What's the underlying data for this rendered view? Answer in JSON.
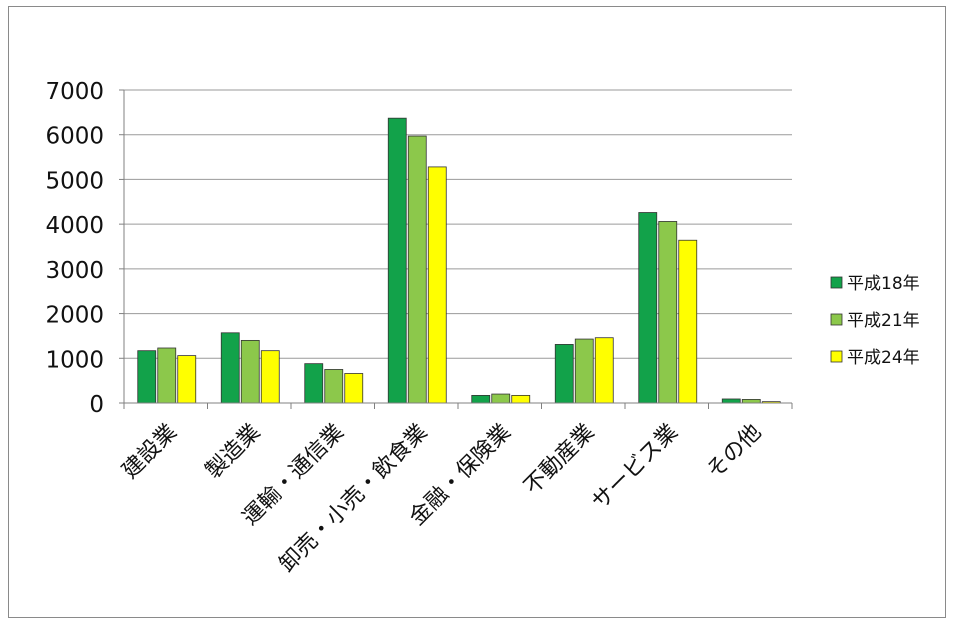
{
  "chart_data": {
    "type": "bar",
    "categories": [
      "建設業",
      "製造業",
      "運輸・通信業",
      "卸売・小売・飲食業",
      "金融・保険業",
      "不動産業",
      "サービス業",
      "その他"
    ],
    "series": [
      {
        "name": "平成18年",
        "color": "#12a24a",
        "values": [
          1170,
          1570,
          880,
          6370,
          170,
          1310,
          4260,
          90
        ]
      },
      {
        "name": "平成21年",
        "color": "#8cc84b",
        "values": [
          1230,
          1400,
          750,
          5970,
          200,
          1430,
          4060,
          80
        ]
      },
      {
        "name": "平成24年",
        "color": "#ffff00",
        "values": [
          1060,
          1170,
          660,
          5280,
          170,
          1460,
          3640,
          30
        ]
      }
    ],
    "yticks": [
      "0",
      "1000",
      "2000",
      "3000",
      "4000",
      "5000",
      "6000",
      "7000"
    ],
    "ylim": [
      0,
      7000
    ],
    "grid": true,
    "legend_position": "right",
    "title": "",
    "xlabel": "",
    "ylabel": ""
  }
}
